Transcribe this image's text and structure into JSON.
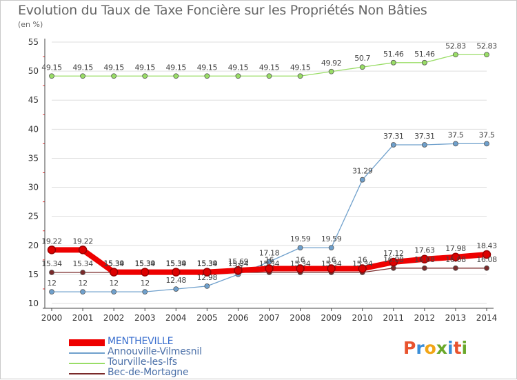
{
  "title": "Evolution du Taux de Taxe Foncière sur les Propriétés Non Bâties",
  "unit": "(en %)",
  "logo": [
    "P",
    "r",
    "o",
    "x",
    "i",
    "t",
    "i"
  ],
  "logo_colors": [
    "#e8532e",
    "#3a8ed8",
    "#f2a516",
    "#6aa82a",
    "#3a8ed8",
    "#e8532e",
    "#6aa82a"
  ],
  "chart_data": {
    "type": "line",
    "title": "Evolution du Taux de Taxe Foncière sur les Propriétés Non Bâties",
    "ylabel": "(en %)",
    "xlabel": "",
    "x": [
      "2000",
      "2001",
      "2002",
      "2003",
      "2004",
      "2005",
      "2006",
      "2007",
      "2008",
      "2009",
      "2010",
      "2011",
      "2012",
      "2013",
      "2014"
    ],
    "ylim": [
      10,
      55
    ],
    "yticks": [
      10,
      15,
      20,
      25,
      30,
      35,
      40,
      45,
      50,
      55
    ],
    "grid": "horizontal",
    "legend_position": "bottom-left",
    "series": [
      {
        "name": "MENTHEVILLE",
        "color": "#ee0000",
        "values": [
          19.22,
          19.22,
          15.39,
          15.39,
          15.39,
          15.39,
          15.69,
          16,
          16,
          16,
          16,
          17.12,
          17.63,
          17.98,
          18.43
        ],
        "labels": [
          "19.22",
          "19.22",
          "15.39",
          "15.39",
          "15.39",
          "15.39",
          "15.69",
          "16",
          "16",
          "16",
          "16",
          "17.12",
          "17.63",
          "17.98",
          "18.43"
        ]
      },
      {
        "name": "Annouville-Vilmesnil",
        "color": "#6fa0cc",
        "values": [
          12,
          12,
          12,
          12,
          12.48,
          12.98,
          15,
          17.18,
          19.59,
          19.59,
          31.29,
          37.31,
          37.31,
          37.5,
          37.5
        ],
        "labels": [
          "12",
          "12",
          "12",
          "12",
          "12.48",
          "12.98",
          "15",
          "17.18",
          "19.59",
          "19.59",
          "31.29",
          "37.31",
          "37.31",
          "37.5",
          "37.5"
        ]
      },
      {
        "name": "Tourville-les-Ifs",
        "color": "#99dd66",
        "values": [
          49.15,
          49.15,
          49.15,
          49.15,
          49.15,
          49.15,
          49.15,
          49.15,
          49.15,
          49.92,
          50.7,
          51.46,
          51.46,
          52.83,
          52.83
        ],
        "labels": [
          "49.15",
          "49.15",
          "49.15",
          "49.15",
          "49.15",
          "49.15",
          "49.15",
          "49.15",
          "49.15",
          "49.92",
          "50.7",
          "51.46",
          "51.46",
          "52.83",
          "52.83"
        ]
      },
      {
        "name": "Bec-de-Mortagne",
        "color": "#7a2a2a",
        "values": [
          15.34,
          15.34,
          15.34,
          15.34,
          15.34,
          15.34,
          15.34,
          15.34,
          15.34,
          15.34,
          15.34,
          16.08,
          16.08,
          16.08,
          16.08
        ],
        "labels": [
          "15.34",
          "15.34",
          "15.34",
          "15.34",
          "15.34",
          "15.34",
          "15.34",
          "15.34",
          "15.34",
          "15.34",
          "15.34",
          "16.08",
          "16.08",
          "16.08",
          "16.08"
        ]
      }
    ]
  }
}
